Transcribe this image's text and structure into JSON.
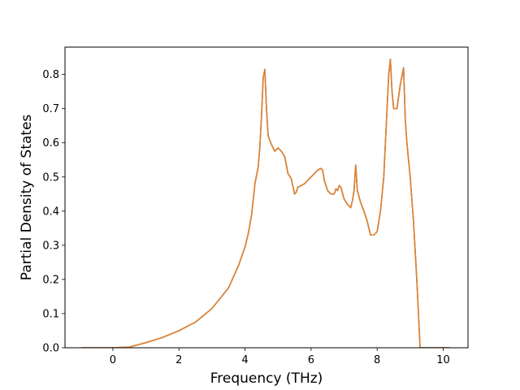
{
  "chart_data": {
    "type": "line",
    "title": "",
    "xlabel": "Frequency (THz)",
    "ylabel": "Partial Density of States",
    "xlim": [
      -1.45,
      10.75
    ],
    "ylim": [
      0.0,
      0.88
    ],
    "xticks": [
      0,
      2,
      4,
      6,
      8,
      10
    ],
    "xtick_labels": [
      "0",
      "2",
      "4",
      "6",
      "8",
      "10"
    ],
    "yticks": [
      0.0,
      0.1,
      0.2,
      0.3,
      0.4,
      0.5,
      0.6,
      0.7,
      0.8
    ],
    "ytick_labels": [
      "0.0",
      "0.1",
      "0.2",
      "0.3",
      "0.4",
      "0.5",
      "0.6",
      "0.7",
      "0.8"
    ],
    "grid": false,
    "legend": "none",
    "series": [
      {
        "color": "#e8822a",
        "x": [
          -0.95,
          -0.5,
          0.0,
          0.5,
          1.0,
          1.5,
          2.0,
          2.5,
          3.0,
          3.5,
          3.8,
          4.0,
          4.1,
          4.2,
          4.3,
          4.4,
          4.45,
          4.5,
          4.55,
          4.6,
          4.65,
          4.7,
          4.8,
          4.9,
          5.0,
          5.1,
          5.2,
          5.3,
          5.4,
          5.5,
          5.55,
          5.6,
          5.7,
          5.8,
          5.9,
          6.0,
          6.1,
          6.2,
          6.3,
          6.35,
          6.4,
          6.5,
          6.6,
          6.7,
          6.75,
          6.8,
          6.85,
          6.9,
          7.0,
          7.1,
          7.2,
          7.25,
          7.3,
          7.35,
          7.4,
          7.5,
          7.6,
          7.7,
          7.8,
          7.9,
          8.0,
          8.1,
          8.2,
          8.3,
          8.35,
          8.4,
          8.45,
          8.5,
          8.6,
          8.7,
          8.8,
          8.85,
          8.9,
          9.0,
          9.1,
          9.2,
          9.25,
          9.3,
          9.4,
          9.6,
          9.8,
          10.0,
          10.2
        ],
        "y": [
          0.0,
          0.0,
          0.0,
          0.002,
          0.015,
          0.03,
          0.05,
          0.075,
          0.115,
          0.175,
          0.24,
          0.295,
          0.335,
          0.39,
          0.48,
          0.53,
          0.59,
          0.68,
          0.79,
          0.815,
          0.7,
          0.62,
          0.595,
          0.575,
          0.585,
          0.575,
          0.56,
          0.51,
          0.495,
          0.45,
          0.455,
          0.47,
          0.475,
          0.48,
          0.49,
          0.5,
          0.51,
          0.52,
          0.525,
          0.52,
          0.49,
          0.46,
          0.45,
          0.45,
          0.465,
          0.46,
          0.475,
          0.47,
          0.435,
          0.42,
          0.41,
          0.43,
          0.46,
          0.535,
          0.46,
          0.425,
          0.4,
          0.37,
          0.33,
          0.33,
          0.34,
          0.4,
          0.5,
          0.7,
          0.8,
          0.845,
          0.75,
          0.7,
          0.7,
          0.77,
          0.82,
          0.67,
          0.6,
          0.5,
          0.37,
          0.2,
          0.1,
          0.0,
          0.0,
          0.0,
          0.0,
          0.0,
          0.0
        ]
      },
      {
        "color": "#2f75b5",
        "x": [
          -0.95,
          -0.5,
          0.0,
          0.5,
          1.0,
          1.5,
          2.0,
          2.5,
          3.0,
          3.5,
          3.8,
          4.0,
          4.1,
          4.2,
          4.3,
          4.4,
          4.45,
          4.5,
          4.55,
          4.6,
          4.65,
          4.7,
          4.8,
          4.9,
          5.0,
          5.1,
          5.2,
          5.3,
          5.4,
          5.5,
          5.55,
          5.6,
          5.7,
          5.8,
          5.9,
          6.0,
          6.1,
          6.2,
          6.3,
          6.35,
          6.4,
          6.5,
          6.6,
          6.7,
          6.75,
          6.8,
          6.85,
          6.9,
          7.0,
          7.1,
          7.2,
          7.25,
          7.3,
          7.35,
          7.4,
          7.5,
          7.6,
          7.7,
          7.8,
          7.9,
          8.0,
          8.1,
          8.2,
          8.3,
          8.35,
          8.4,
          8.45,
          8.5,
          8.6,
          8.7,
          8.8,
          8.85,
          8.9,
          9.0,
          9.1,
          9.2,
          9.25,
          9.3,
          9.4,
          9.6,
          9.8,
          10.0,
          10.2
        ],
        "y": [
          0.0,
          0.0,
          0.0,
          0.002,
          0.015,
          0.03,
          0.05,
          0.075,
          0.115,
          0.175,
          0.24,
          0.295,
          0.335,
          0.39,
          0.48,
          0.53,
          0.59,
          0.68,
          0.79,
          0.815,
          0.7,
          0.62,
          0.595,
          0.575,
          0.585,
          0.575,
          0.56,
          0.51,
          0.495,
          0.45,
          0.455,
          0.47,
          0.475,
          0.48,
          0.49,
          0.5,
          0.51,
          0.52,
          0.525,
          0.52,
          0.49,
          0.46,
          0.45,
          0.45,
          0.465,
          0.46,
          0.475,
          0.47,
          0.435,
          0.42,
          0.41,
          0.43,
          0.46,
          0.535,
          0.46,
          0.425,
          0.4,
          0.37,
          0.33,
          0.33,
          0.34,
          0.4,
          0.5,
          0.7,
          0.8,
          0.845,
          0.75,
          0.7,
          0.7,
          0.77,
          0.82,
          0.67,
          0.6,
          0.5,
          0.37,
          0.2,
          0.1,
          0.0,
          0.0,
          0.0,
          0.0,
          0.0,
          0.0
        ]
      }
    ]
  }
}
